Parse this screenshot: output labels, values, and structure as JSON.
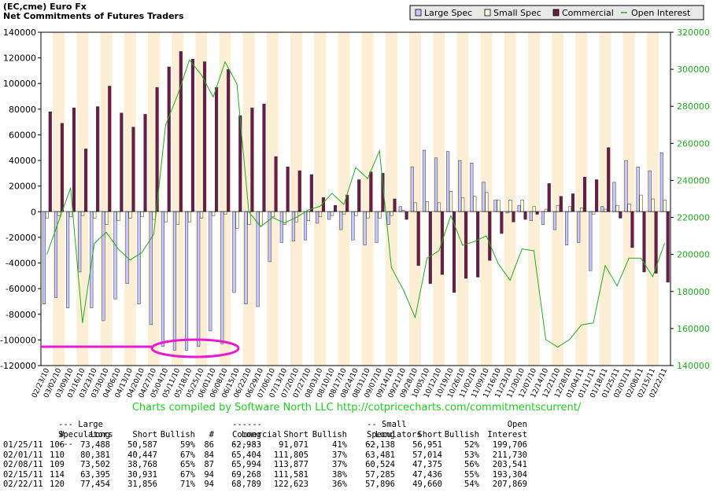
{
  "header": {
    "line1": "(EC,cme) Euro Fx",
    "line2": "Net Commitments of Futures Traders"
  },
  "legend": {
    "large_spec": "Large Spec",
    "small_spec": "Small Spec",
    "commercial": "Commercial",
    "open_interest": "Open Interest"
  },
  "colors": {
    "large_spec": "#c8c8ff",
    "small_spec": "#ffffe0",
    "commercial": "#6b1a4a",
    "open_interest": "#22aa22",
    "stripe": "#fdefd6",
    "highlight": "#e81ccc"
  },
  "credit": "Charts compiled by Software North LLC  http://cotpricecharts.com/commitmentscurrent/",
  "chart_data": {
    "type": "bar",
    "ylim": [
      -120000,
      140000
    ],
    "y_ticks": [
      "140000",
      "120000",
      "100000",
      "80000",
      "60000",
      "40000",
      "20000",
      "0",
      "-20000",
      "-40000",
      "-60000",
      "-80000",
      "-100000",
      "-120000"
    ],
    "y2lim": [
      140000,
      320000
    ],
    "y2_ticks": [
      "320000",
      "300000",
      "280000",
      "260000",
      "240000",
      "220000",
      "200000",
      "180000",
      "160000",
      "140000"
    ],
    "categories": [
      "02/23/10",
      "03/02/10",
      "03/09/10",
      "03/16/10",
      "03/23/10",
      "03/30/10",
      "04/06/10",
      "04/13/10",
      "04/20/10",
      "04/27/10",
      "05/04/10",
      "05/11/10",
      "05/18/10",
      "05/25/10",
      "06/01/10",
      "06/08/10",
      "06/15/10",
      "06/22/10",
      "06/29/10",
      "07/06/10",
      "07/13/10",
      "07/20/10",
      "07/27/10",
      "08/03/10",
      "08/10/10",
      "08/17/10",
      "08/24/10",
      "08/31/10",
      "09/07/10",
      "09/14/10",
      "09/21/10",
      "09/28/10",
      "10/05/10",
      "10/12/10",
      "10/19/10",
      "10/26/10",
      "11/02/10",
      "11/09/10",
      "11/16/10",
      "11/23/10",
      "11/30/10",
      "12/07/10",
      "12/14/10",
      "12/21/10",
      "12/28/10",
      "01/04/11",
      "01/11/11",
      "01/18/11",
      "01/25/11",
      "02/01/11",
      "02/08/11",
      "02/15/11",
      "02/22/11"
    ],
    "series": [
      {
        "name": "Large Spec",
        "values": [
          -72000,
          -67000,
          -75000,
          -47000,
          -75000,
          -85000,
          -68000,
          -56000,
          -72000,
          -88000,
          -105000,
          -108000,
          -108000,
          -105000,
          -93000,
          -103000,
          -63000,
          -72000,
          -74000,
          -39000,
          -24000,
          -23000,
          -22000,
          -9000,
          -6000,
          -14000,
          -22000,
          -26000,
          -24000,
          -10000,
          4000,
          35000,
          48000,
          42000,
          47000,
          40000,
          38000,
          23000,
          9000,
          -1000,
          5000,
          -7000,
          -10000,
          -14000,
          -26000,
          -24000,
          -46000,
          4000,
          23000,
          40000,
          35000,
          32000,
          46000
        ]
      },
      {
        "name": "Small Spec",
        "values": [
          -5000,
          -3000,
          -4000,
          -3000,
          -5000,
          -10000,
          -7000,
          -5000,
          -4000,
          -6000,
          -8000,
          -10000,
          -8000,
          -5000,
          -3000,
          -2000,
          -13000,
          -10000,
          -11000,
          -4000,
          -10000,
          -8000,
          -7000,
          -4000,
          -3000,
          -2000,
          -3000,
          -5000,
          -5000,
          -3000,
          1000,
          7000,
          8000,
          7000,
          16000,
          11000,
          12000,
          15000,
          9000,
          9000,
          9000,
          4000,
          2000,
          5000,
          4000,
          3000,
          -2000,
          2000,
          5000,
          6000,
          13000,
          10000,
          9000
        ]
      },
      {
        "name": "Commercial",
        "values": [
          78000,
          69000,
          81000,
          49000,
          82000,
          98000,
          77000,
          66000,
          76000,
          97000,
          113000,
          125000,
          119000,
          117000,
          97000,
          111000,
          75000,
          81000,
          84000,
          43000,
          35000,
          32000,
          29000,
          11000,
          5000,
          13000,
          25000,
          31000,
          30000,
          10000,
          -6000,
          -42000,
          -56000,
          -49000,
          -63000,
          -52000,
          -51000,
          -38000,
          -17000,
          -8000,
          -6000,
          -2000,
          22000,
          12000,
          14000,
          27000,
          25000,
          50000,
          -5000,
          -28000,
          -47000,
          -48000,
          -55000
        ]
      },
      {
        "name": "Open Interest",
        "values": [
          200000,
          218000,
          236000,
          163000,
          206000,
          212000,
          203000,
          197000,
          201000,
          211000,
          270000,
          286000,
          305000,
          297000,
          285000,
          304000,
          292000,
          223000,
          215000,
          220000,
          217000,
          220000,
          224000,
          226000,
          233000,
          227000,
          247000,
          241000,
          256000,
          193000,
          181000,
          166000,
          198000,
          202000,
          221000,
          205000,
          207000,
          210000,
          195000,
          186000,
          203000,
          202000,
          154000,
          150000,
          154000,
          162000,
          163000,
          194000,
          183000,
          198000,
          198000,
          188000,
          206000
        ]
      }
    ]
  },
  "table": {
    "header1": {
      "large": "--- Large Speculators ---",
      "commercial": "------ Commercial ------",
      "small": "-- Small Speculators --",
      "open": "Open"
    },
    "header2": {
      "num1": "#",
      "long1": "Long",
      "short1": "Short",
      "bull1": "Bullish",
      "num2": "#",
      "long2": "Long",
      "short2": "Short",
      "bull2": "Bullish",
      "long3": "Long",
      "short3": "Short",
      "bull3": "Bullish",
      "oi": "Interest"
    },
    "rows": [
      {
        "date": "01/25/11",
        "n1": "106",
        "l1": "73,488",
        "s1": "50,587",
        "b1": "59%",
        "n2": "86",
        "l2": "62,983",
        "s2": "91,071",
        "b2": "41%",
        "l3": "62,138",
        "s3": "56,951",
        "b3": "52%",
        "oi": "199,706"
      },
      {
        "date": "02/01/11",
        "n1": "110",
        "l1": "80,381",
        "s1": "40,447",
        "b1": "67%",
        "n2": "84",
        "l2": "65,404",
        "s2": "111,805",
        "b2": "37%",
        "l3": "63,481",
        "s3": "57,014",
        "b3": "53%",
        "oi": "211,730"
      },
      {
        "date": "02/08/11",
        "n1": "109",
        "l1": "73,502",
        "s1": "38,768",
        "b1": "65%",
        "n2": "87",
        "l2": "65,994",
        "s2": "113,877",
        "b2": "37%",
        "l3": "60,524",
        "s3": "47,375",
        "b3": "56%",
        "oi": "203,541"
      },
      {
        "date": "02/15/11",
        "n1": "114",
        "l1": "63,395",
        "s1": "30,931",
        "b1": "67%",
        "n2": "94",
        "l2": "69,268",
        "s2": "111,581",
        "b2": "38%",
        "l3": "57,285",
        "s3": "47,436",
        "b3": "55%",
        "oi": "193,304"
      },
      {
        "date": "02/22/11",
        "n1": "120",
        "l1": "77,454",
        "s1": "31,856",
        "b1": "71%",
        "n2": "94",
        "l2": "68,789",
        "s2": "122,623",
        "b2": "36%",
        "l3": "57,896",
        "s3": "49,660",
        "b3": "54%",
        "oi": "207,869"
      }
    ]
  }
}
